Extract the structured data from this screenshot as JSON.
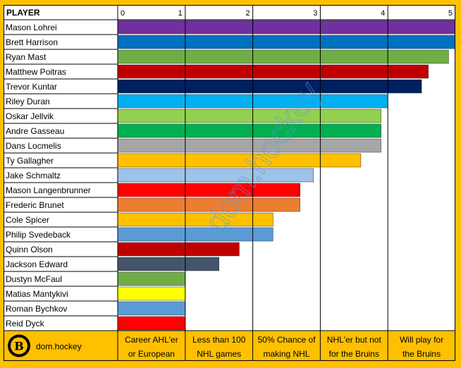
{
  "header": {
    "player_label": "PLAYER"
  },
  "brand": {
    "name": "dom.hockey",
    "watermark": "dom.hockey",
    "logo_letter": "B"
  },
  "colors": {
    "background": "#FFC000",
    "grid": "#000000"
  },
  "chart_data": {
    "type": "bar",
    "orientation": "horizontal",
    "xlim": [
      0,
      5
    ],
    "ticks": [
      0,
      1,
      2,
      3,
      4,
      5
    ],
    "grid": true,
    "categories": [
      "Mason Lohrei",
      "Brett Harrison",
      "Ryan Mast",
      "Matthew Poitras",
      "Trevor Kuntar",
      "Riley Duran",
      "Oskar Jellvik",
      "Andre Gasseau",
      "Dans Locmelis",
      "Ty Gallagher",
      "Jake Schmaltz",
      "Mason Langenbrunner",
      "Frederic Brunet",
      "Cole Spicer",
      "Philip Svedeback",
      "Quinn Olson",
      "Jackson Edward",
      "Dustyn McFaul",
      "Matias Mantykivi",
      "Roman Bychkov",
      "Reid Dyck"
    ],
    "values": [
      5.0,
      5.0,
      4.9,
      4.6,
      4.5,
      4.0,
      3.9,
      3.9,
      3.9,
      3.6,
      2.9,
      2.7,
      2.7,
      2.3,
      2.3,
      1.8,
      1.5,
      1.0,
      1.0,
      1.0,
      1.0
    ],
    "bar_colors": [
      "#7030A0",
      "#0070C0",
      "#70AD47",
      "#C00000",
      "#002060",
      "#00B0F0",
      "#92D050",
      "#00B050",
      "#A6A6A6",
      "#FFC000",
      "#9DC3E6",
      "#FF0000",
      "#ED7D31",
      "#FFC000",
      "#5B9BD5",
      "#C00000",
      "#44546A",
      "#70AD47",
      "#FFFF00",
      "#5B9BD5",
      "#FF0000"
    ],
    "band_labels": [
      [
        "Career AHL'er",
        "or European"
      ],
      [
        "Less than 100",
        "NHL games"
      ],
      [
        "50% Chance of",
        "making NHL"
      ],
      [
        "NHL'er but not",
        "for the Bruins"
      ],
      [
        "Will play for",
        "the Bruins"
      ]
    ]
  }
}
